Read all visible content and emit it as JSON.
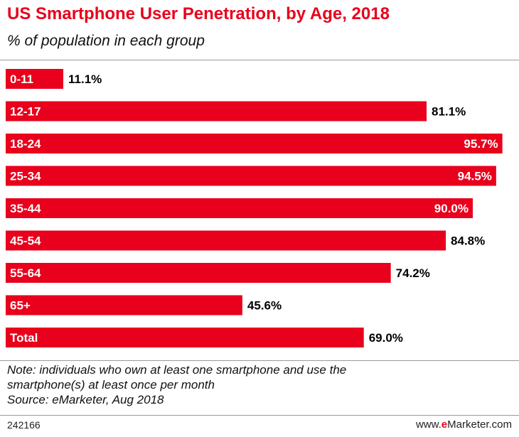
{
  "header": {
    "title": "US Smartphone User Penetration, by Age, 2018",
    "subtitle": "% of population in each group"
  },
  "chart_data": {
    "type": "bar",
    "orientation": "horizontal",
    "categories": [
      "0-11",
      "12-17",
      "18-24",
      "25-34",
      "35-44",
      "45-54",
      "55-64",
      "65+",
      "Total"
    ],
    "values": [
      11.1,
      81.1,
      95.7,
      94.5,
      90.0,
      84.8,
      74.2,
      45.6,
      69.0
    ],
    "value_labels": [
      "11.1%",
      "81.1%",
      "95.7%",
      "94.5%",
      "90.0%",
      "84.8%",
      "74.2%",
      "45.6%",
      "69.0%"
    ],
    "title": "US Smartphone User Penetration, by Age, 2018",
    "xlabel": "",
    "ylabel": "",
    "xlim": [
      0,
      100
    ],
    "grid": false,
    "bar_color": "#e8001c"
  },
  "notes": {
    "note_line1": "Note: individuals who own at least one smartphone and use the",
    "note_line2": "smartphone(s) at least once per month",
    "source": "Source: eMarketer, Aug 2018"
  },
  "footer": {
    "chart_id": "242166",
    "brand_prefix": "www.",
    "brand_accent": "e",
    "brand_suffix": "Marketer.com",
    "accent_color": "#e8001c"
  }
}
